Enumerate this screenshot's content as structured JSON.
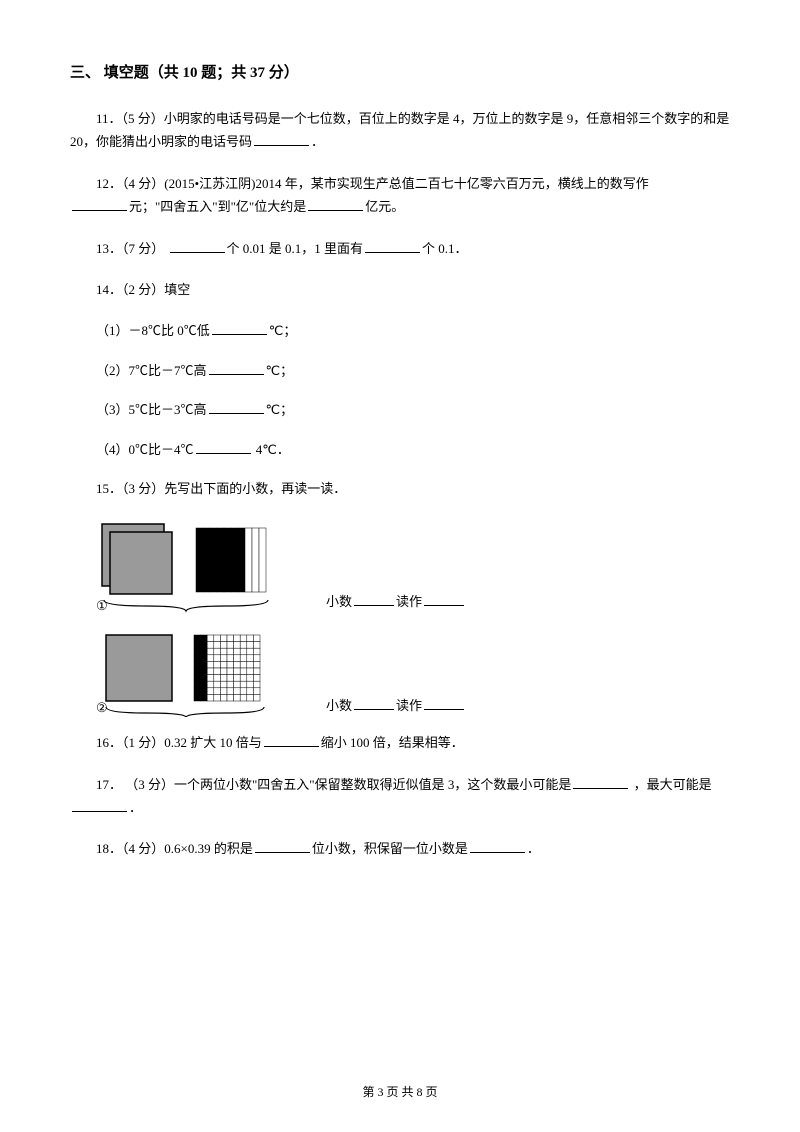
{
  "section": {
    "title": "三、 填空题（共 10 题；共 37 分）"
  },
  "q11": {
    "prefix": "11．（5 分）小明家的电话号码是一个七位数，百位上的数字是 4，万位上的数字是 9，任意相邻三个数字的和是 20，你能猜出小明家的电话号码",
    "suffix": "．"
  },
  "q12": {
    "line1_a": "12．（4 分）(2015•江苏江阴)2014 年，某市实现生产总值二百七十亿零六百万元，横线上的数写作",
    "line2_a": "元；\"四舍五入\"到\"亿\"位大约是",
    "line2_b": "亿元。"
  },
  "q13": {
    "a": "13．（7 分）  ",
    "b": "个 0.01 是 0.1，1 里面有",
    "c": "个 0.1．"
  },
  "q14": {
    "head": "14．（2 分）填空",
    "s1_a": "（1）－8℃比 0℃低",
    "s1_b": "℃；",
    "s2_a": "（2）7℃比－7℃高",
    "s2_b": "℃；",
    "s3_a": "（3）5℃比－3℃高",
    "s3_b": "℃；",
    "s4_a": "（4）0℃比－4℃",
    "s4_b": " 4℃．"
  },
  "q15": {
    "head": "15．（3 分）先写出下面的小数，再读一读．",
    "label1": "①",
    "label2": "②",
    "xiaoshu": " 小数",
    "duzuo": "读作"
  },
  "q16": {
    "a": "16．（1 分）0.32 扩大 10 倍与",
    "b": "缩小 100 倍，结果相等．"
  },
  "q17": {
    "a": "17． （3 分）一个两位小数\"四舍五入\"保留整数取得近似值是 3，这个数最小可能是",
    "b": " ，最大可能是",
    "c": "．"
  },
  "q18": {
    "a": "18．（4 分）0.6×0.39 的积是",
    "b": "位小数，积保留一位小数是",
    "c": "．"
  },
  "footer": {
    "text": "第 3 页 共 8 页"
  },
  "figures": {
    "fig1": {
      "square_fill": "#9a9a9a",
      "square_stroke": "#000000",
      "bar_fill_dark": "#000000",
      "bar_fill_light": "#ffffff",
      "bracket_stroke": "#000000"
    },
    "fig2": {
      "square_fill": "#9a9a9a",
      "grid_stroke": "#000000",
      "grid_fill_dark": "#000000",
      "grid_fill_light": "#ffffff"
    }
  }
}
